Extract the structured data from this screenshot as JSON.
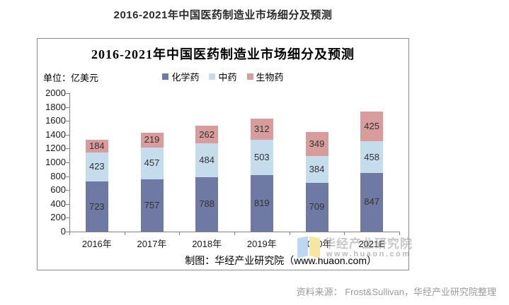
{
  "page": {
    "title": "2016-2021年中国医药制造业市场细分及预测",
    "source_note": "资料来源： Frost&Sullivan，华经产业研究院整理"
  },
  "chart": {
    "title": "2016-2021年中国医药制造业市场细分及预测",
    "unit_label": "单位：亿美元",
    "footer_note": "制图：华经产业研究院（www.huaon.com）"
  },
  "watermark": {
    "logo": "huaon-open-book-logo",
    "brand_text": "华经产业研究院",
    "url_text": "www.huaon.com"
  },
  "chart_data": {
    "type": "bar",
    "stacked": true,
    "title": "2016-2021年中国医药制造业市场细分及预测",
    "unit": "亿美元",
    "categories": [
      "2016年",
      "2017年",
      "2018年",
      "2019年",
      "2020年",
      "2021E"
    ],
    "series": [
      {
        "name": "化学药",
        "color": "#6e7aa4",
        "values": [
          723,
          757,
          788,
          819,
          709,
          847
        ]
      },
      {
        "name": "中药",
        "color": "#c4dcec",
        "values": [
          423,
          457,
          484,
          503,
          384,
          458
        ]
      },
      {
        "name": "生物药",
        "color": "#d89c9c",
        "values": [
          184,
          219,
          262,
          312,
          349,
          425
        ]
      }
    ],
    "totals": [
      1330,
      1433,
      1534,
      1634,
      1442,
      1730
    ],
    "ylim": [
      0,
      2000
    ],
    "ytick_step": 200,
    "grid": false,
    "legend_position": "top",
    "bar_labels": true,
    "axis_color": "#808080"
  }
}
